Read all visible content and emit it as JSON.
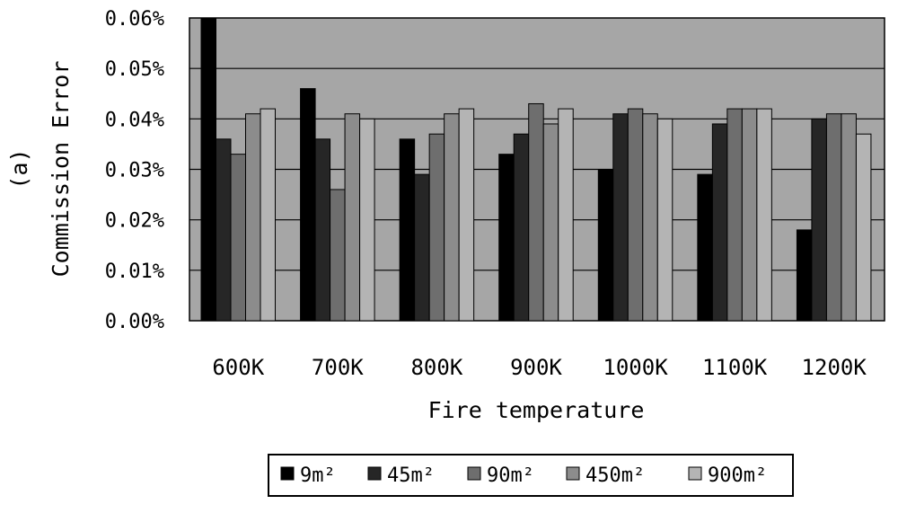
{
  "chart_data": {
    "type": "bar",
    "title": "",
    "xlabel": "Fire temperature",
    "ylabel": "Commission Error",
    "panel_label": "(a)",
    "categories": [
      "600K",
      "700K",
      "800K",
      "900K",
      "1000K",
      "1100K",
      "1200K"
    ],
    "ylim": [
      0,
      0.06
    ],
    "yticks": [
      "0.00%",
      "0.01%",
      "0.02%",
      "0.03%",
      "0.04%",
      "0.05%",
      "0.06%"
    ],
    "ytick_values": [
      0,
      0.01,
      0.02,
      0.03,
      0.04,
      0.05,
      0.06
    ],
    "grid": true,
    "legend_position": "bottom",
    "series": [
      {
        "name": "9m²",
        "color": "#000000",
        "values": [
          0.06,
          0.046,
          0.036,
          0.033,
          0.03,
          0.029,
          0.018
        ]
      },
      {
        "name": "45m²",
        "color": "#262626",
        "values": [
          0.036,
          0.036,
          0.029,
          0.037,
          0.041,
          0.039,
          0.04
        ]
      },
      {
        "name": "90m²",
        "color": "#6e6e6e",
        "values": [
          0.033,
          0.026,
          0.037,
          0.043,
          0.042,
          0.042,
          0.041
        ]
      },
      {
        "name": "450m²",
        "color": "#8c8c8c",
        "values": [
          0.041,
          0.041,
          0.041,
          0.039,
          0.041,
          0.042,
          0.041
        ]
      },
      {
        "name": "900m²",
        "color": "#b4b4b4",
        "values": [
          0.042,
          0.04,
          0.042,
          0.042,
          0.04,
          0.042,
          0.037
        ]
      }
    ],
    "plot_background": "#a6a6a6"
  }
}
